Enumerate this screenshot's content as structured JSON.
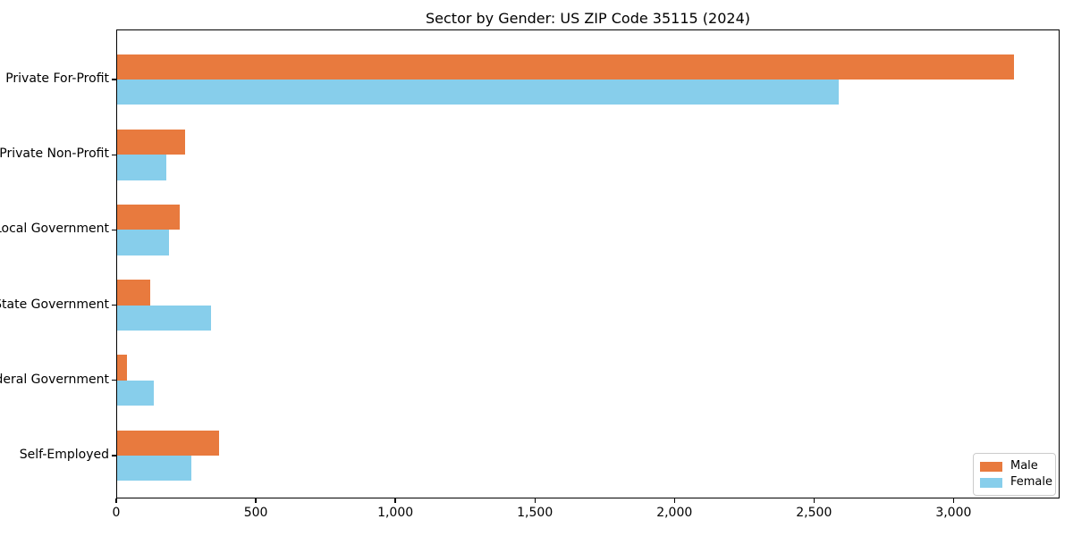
{
  "title": "Sector by Gender: US ZIP Code 35115 (2024)",
  "background_color": "#ffffff",
  "text_color": "#000000",
  "chart_data": {
    "type": "bar",
    "orientation": "horizontal",
    "title": "Sector by Gender: US ZIP Code 35115 (2024)",
    "xlabel": "",
    "ylabel": "",
    "grid": false,
    "categories": [
      "Private For-Profit",
      "Private Non-Profit",
      "Local Government",
      "State Government",
      "Federal Government",
      "Self-Employed"
    ],
    "series": [
      {
        "name": "Male",
        "color": "#e87a3e",
        "values": [
          3215,
          245,
          225,
          120,
          35,
          365
        ]
      },
      {
        "name": "Female",
        "color": "#87ceeb",
        "values": [
          2585,
          175,
          185,
          335,
          130,
          265
        ]
      }
    ],
    "xlim": [
      0,
      3380
    ],
    "xticks": [
      0,
      500,
      1000,
      1500,
      2000,
      2500,
      3000
    ],
    "xtick_labels": [
      "0",
      "500",
      "1,000",
      "1,500",
      "2,000",
      "2,500",
      "3,000"
    ],
    "legend": {
      "position": "lower right",
      "entries": [
        "Male",
        "Female"
      ]
    }
  }
}
